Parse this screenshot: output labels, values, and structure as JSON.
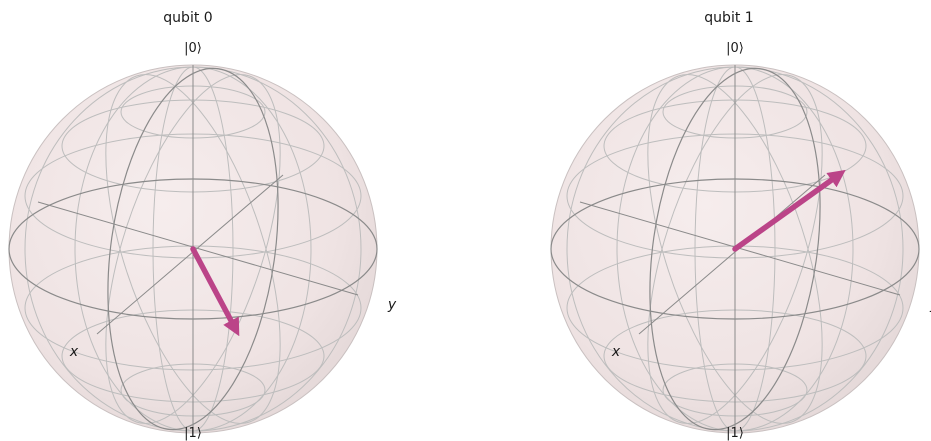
{
  "figure": {
    "colors": {
      "sphere_fill": "#f2e6e6",
      "sphere_shade": "#e2d6d6",
      "wire": "#a8a8a8",
      "frame": "#8a8a8a",
      "vector": "#bb4488"
    },
    "spheres": [
      {
        "title": "qubit 0",
        "ket_top": "|0⟩",
        "ket_bottom": "|1⟩",
        "x_label": "x",
        "y_label": "y"
      },
      {
        "title": "qubit 1",
        "ket_top": "|0⟩",
        "ket_bottom": "|1⟩",
        "x_label": "x",
        "y_label": "y"
      }
    ]
  }
}
